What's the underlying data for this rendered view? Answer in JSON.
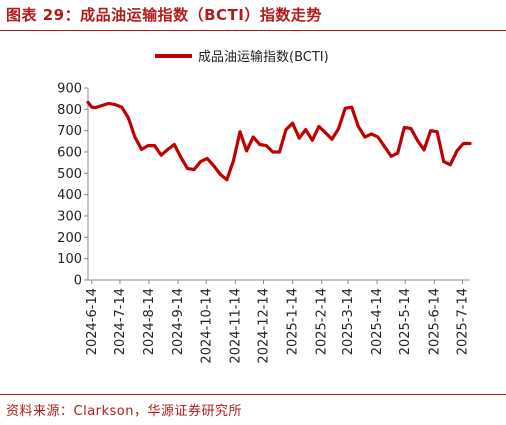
{
  "figure": {
    "title": "图表 29：成品油运输指数（BCTI）指数走势",
    "source": "资料来源：Clarkson，华源证券研究所"
  },
  "colors": {
    "accent": "#b31b1b",
    "series": "#c00000",
    "axis": "#888888"
  },
  "chart_data": {
    "type": "line",
    "title": "",
    "xlabel": "",
    "ylabel": "",
    "ylim": [
      0,
      900
    ],
    "yticks": [
      0,
      100,
      200,
      300,
      400,
      500,
      600,
      700,
      800,
      900
    ],
    "grid": false,
    "legend": "top-center",
    "xticks": [
      "2024-6-14",
      "2024-7-14",
      "2024-8-14",
      "2024-9-14",
      "2024-10-14",
      "2024-11-14",
      "2024-12-14",
      "2025-1-14",
      "2025-2-14",
      "2025-3-14",
      "2025-4-14",
      "2025-5-14",
      "2025-6-14",
      "2025-7-14"
    ],
    "series": [
      {
        "name": "成品油运输指数(BCTI)",
        "x": [
          "2024-6-10",
          "2024-6-14",
          "2024-6-18",
          "2024-6-25",
          "2024-7-2",
          "2024-7-9",
          "2024-7-16",
          "2024-7-23",
          "2024-7-30",
          "2024-8-6",
          "2024-8-13",
          "2024-8-20",
          "2024-8-27",
          "2024-9-3",
          "2024-9-10",
          "2024-9-17",
          "2024-9-24",
          "2024-10-1",
          "2024-10-8",
          "2024-10-15",
          "2024-10-22",
          "2024-10-29",
          "2024-11-5",
          "2024-11-12",
          "2024-11-19",
          "2024-11-26",
          "2024-12-3",
          "2024-12-10",
          "2024-12-17",
          "2024-12-24",
          "2024-12-31",
          "2025-1-7",
          "2025-1-14",
          "2025-1-21",
          "2025-1-28",
          "2025-2-4",
          "2025-2-11",
          "2025-2-18",
          "2025-2-25",
          "2025-3-4",
          "2025-3-11",
          "2025-3-18",
          "2025-3-25",
          "2025-4-1",
          "2025-4-8",
          "2025-4-15",
          "2025-4-22",
          "2025-4-29",
          "2025-5-6",
          "2025-5-13",
          "2025-5-20",
          "2025-5-27",
          "2025-6-3",
          "2025-6-10",
          "2025-6-17",
          "2025-6-24",
          "2025-7-1",
          "2025-7-8",
          "2025-7-15",
          "2025-7-22"
        ],
        "values": [
          833,
          810,
          808,
          818,
          828,
          822,
          810,
          760,
          670,
          612,
          630,
          630,
          585,
          612,
          635,
          575,
          522,
          518,
          555,
          570,
          535,
          495,
          470,
          560,
          695,
          605,
          670,
          635,
          630,
          600,
          600,
          705,
          735,
          665,
          705,
          655,
          720,
          690,
          660,
          710,
          805,
          810,
          720,
          670,
          685,
          670,
          625,
          580,
          595,
          715,
          710,
          655,
          610,
          700,
          695,
          555,
          540,
          605,
          640,
          640
        ]
      }
    ]
  }
}
